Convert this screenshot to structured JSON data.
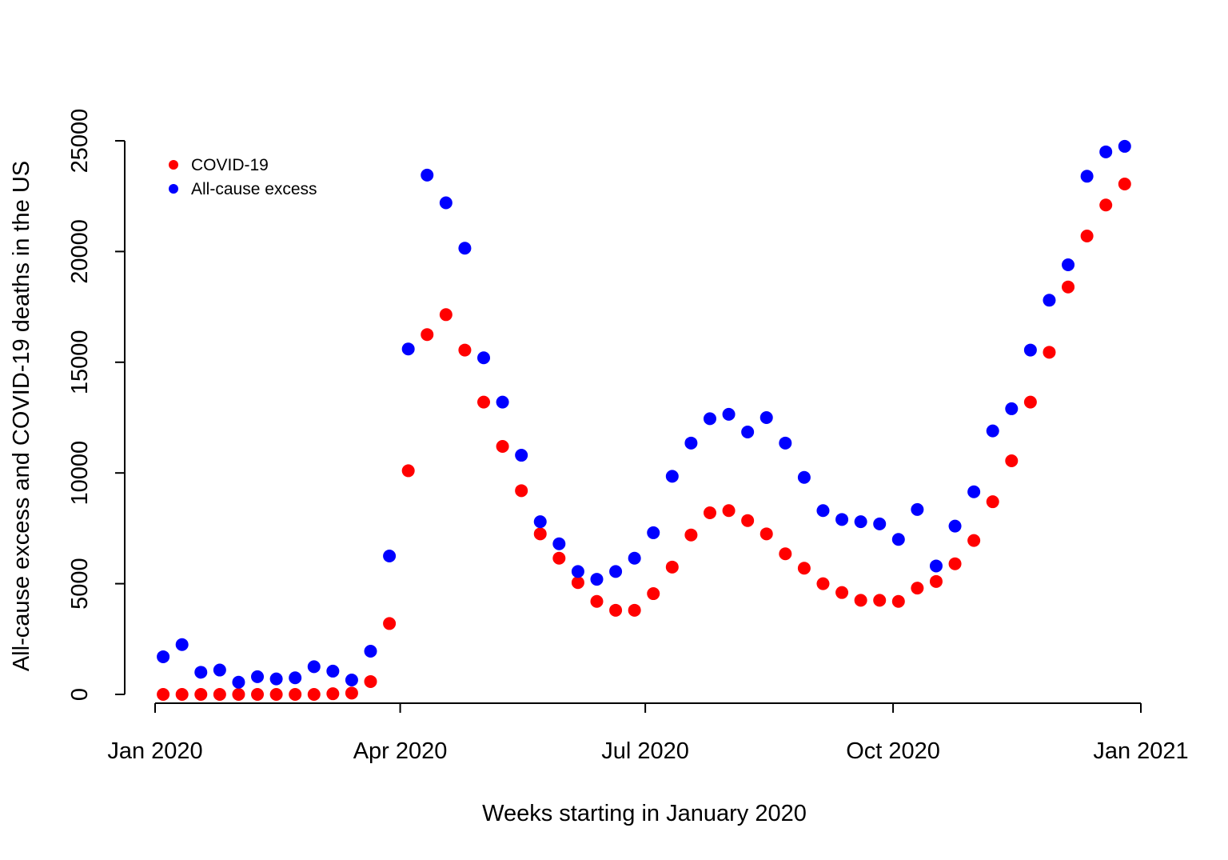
{
  "chart_data": {
    "type": "scatter",
    "title": "",
    "xlabel": "Weeks starting in January 2020",
    "ylabel": "All-cause excess and COVID-19 deaths in the US",
    "x_axis": {
      "type": "date",
      "range": [
        "2019-12-31",
        "2021-01-02"
      ],
      "ticks": [
        {
          "value": "2020-01-01",
          "label": "Jan 2020"
        },
        {
          "value": "2020-04-01",
          "label": "Apr 2020"
        },
        {
          "value": "2020-07-01",
          "label": "Jul 2020"
        },
        {
          "value": "2020-10-01",
          "label": "Oct 2020"
        },
        {
          "value": "2021-01-01",
          "label": "Jan 2021"
        }
      ]
    },
    "y_axis": {
      "range": [
        0,
        25000
      ],
      "ticks": [
        {
          "value": 0,
          "label": "0"
        },
        {
          "value": 5000,
          "label": "5000"
        },
        {
          "value": 10000,
          "label": "10000"
        },
        {
          "value": 15000,
          "label": "15000"
        },
        {
          "value": 20000,
          "label": "20000"
        },
        {
          "value": 25000,
          "label": "25000"
        }
      ]
    },
    "grid": false,
    "legend": {
      "position": "top-left"
    },
    "x": [
      "2020-01-04",
      "2020-01-11",
      "2020-01-18",
      "2020-01-25",
      "2020-02-01",
      "2020-02-08",
      "2020-02-15",
      "2020-02-22",
      "2020-02-29",
      "2020-03-07",
      "2020-03-14",
      "2020-03-21",
      "2020-03-28",
      "2020-04-04",
      "2020-04-11",
      "2020-04-18",
      "2020-04-25",
      "2020-05-02",
      "2020-05-09",
      "2020-05-16",
      "2020-05-23",
      "2020-05-30",
      "2020-06-06",
      "2020-06-13",
      "2020-06-20",
      "2020-06-27",
      "2020-07-04",
      "2020-07-11",
      "2020-07-18",
      "2020-07-25",
      "2020-08-01",
      "2020-08-08",
      "2020-08-15",
      "2020-08-22",
      "2020-08-29",
      "2020-09-05",
      "2020-09-12",
      "2020-09-19",
      "2020-09-26",
      "2020-10-03",
      "2020-10-10",
      "2020-10-17",
      "2020-10-24",
      "2020-10-31",
      "2020-11-07",
      "2020-11-14",
      "2020-11-21",
      "2020-11-28",
      "2020-12-05",
      "2020-12-12",
      "2020-12-19",
      "2020-12-26"
    ],
    "series": [
      {
        "name": "COVID-19",
        "color": "#ff0000",
        "values": [
          0,
          0,
          0,
          0,
          0,
          0,
          0,
          0,
          0,
          30,
          60,
          580,
          3200,
          10100,
          16250,
          17150,
          15550,
          13200,
          11200,
          9200,
          7250,
          6150,
          5050,
          4200,
          3800,
          3800,
          4550,
          5750,
          7200,
          8200,
          8300,
          7850,
          7250,
          6350,
          5700,
          5000,
          4600,
          4250,
          4250,
          4200,
          4800,
          5100,
          5900,
          6950,
          8700,
          10550,
          13200,
          15450,
          18400,
          20700,
          22100,
          23050
        ]
      },
      {
        "name": "All-cause excess",
        "color": "#0000ff",
        "values": [
          1700,
          2250,
          1000,
          1100,
          550,
          800,
          700,
          750,
          1250,
          1050,
          650,
          1950,
          6250,
          15600,
          23450,
          22200,
          20150,
          15200,
          13200,
          10800,
          7800,
          6800,
          5550,
          5200,
          5550,
          6150,
          7300,
          9850,
          11350,
          12450,
          12650,
          11850,
          12500,
          11350,
          9800,
          8300,
          7900,
          7800,
          7700,
          7000,
          8350,
          5800,
          7600,
          9150,
          11900,
          12900,
          15550,
          17800,
          19400,
          23400,
          24500,
          24750
        ]
      }
    ]
  }
}
